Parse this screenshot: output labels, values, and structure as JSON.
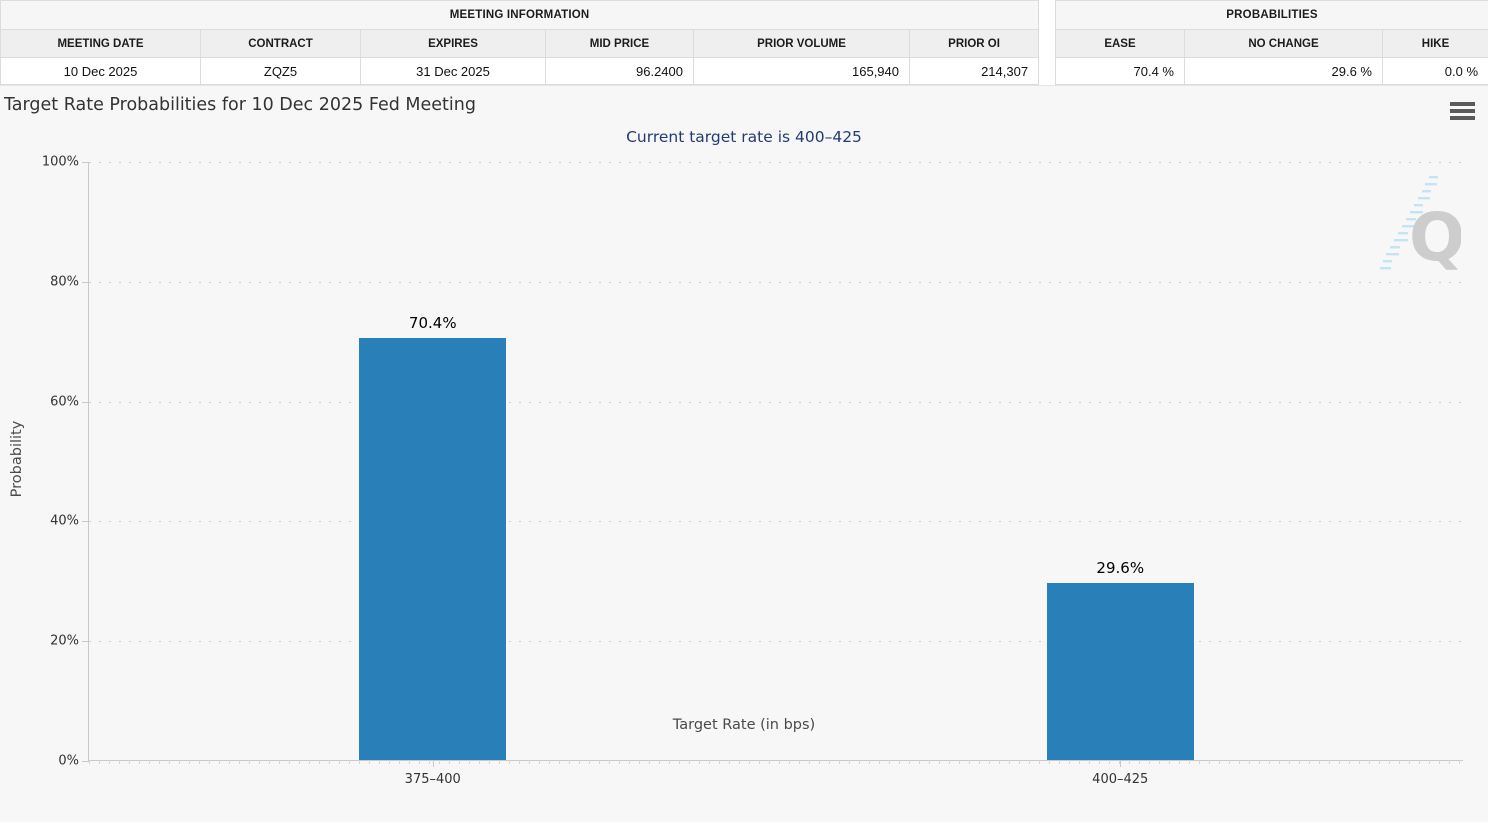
{
  "meeting_information": {
    "title": "MEETING INFORMATION",
    "columns": [
      "MEETING DATE",
      "CONTRACT",
      "EXPIRES",
      "MID PRICE",
      "PRIOR VOLUME",
      "PRIOR OI"
    ],
    "row": [
      "10 Dec 2025",
      "ZQZ5",
      "31 Dec 2025",
      "96.2400",
      "165,940",
      "214,307"
    ]
  },
  "probabilities": {
    "title": "PROBABILITIES",
    "columns": [
      "EASE",
      "NO CHANGE",
      "HIKE"
    ],
    "row": [
      "70.4 %",
      "29.6 %",
      "0.0 %"
    ]
  },
  "chart_data": {
    "type": "bar",
    "title": "Target Rate Probabilities for 10 Dec 2025 Fed Meeting",
    "subtitle": "Current target rate is 400–425",
    "categories": [
      "375–400",
      "400–425"
    ],
    "values": [
      70.4,
      29.6
    ],
    "value_labels": [
      "70.4%",
      "29.6%"
    ],
    "xlabel": "Target Rate (in bps)",
    "ylabel": "Probability",
    "ylim": [
      0,
      100
    ],
    "yticks": [
      0,
      20,
      40,
      60,
      80,
      100
    ],
    "ytick_suffix": "%",
    "grid": "horizontal-dotted",
    "legend_position": "none",
    "bar_color": "#2980b9"
  },
  "colors": {
    "bar": "#2980b9",
    "subtitle_text": "#233b73",
    "axis_line": "#c9c9c9",
    "page_background": "#f7f7f7",
    "table_header_background": "#efefef"
  },
  "watermark": {
    "letter": "Q"
  }
}
